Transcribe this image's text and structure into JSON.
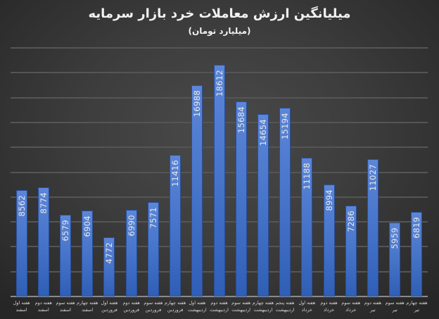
{
  "chart_data": {
    "type": "bar",
    "title": "میلیانگین ارزش معاملات خرد بازار سرمایه",
    "subtitle": "(میلیارد تومان)",
    "xlabel": "",
    "ylabel": "",
    "ylim": [
      0,
      20000
    ],
    "grid": true,
    "gridline_step": 2000,
    "legend": "none",
    "y_axis_visible": false,
    "data_labels": "inside-end-rotated",
    "colors": {
      "background_center": "#4a4a4a",
      "background_edge": "#262626",
      "bar_top": "#5c86d8",
      "bar_bottom": "#2f5eb6",
      "gridline": "#555555",
      "text": "#f2f2f2"
    },
    "categories": [
      {
        "week": "هفته اول",
        "month": "اسفند"
      },
      {
        "week": "هفته دوم",
        "month": "اسفند"
      },
      {
        "week": "هفته سوم",
        "month": "اسفند"
      },
      {
        "week": "هفته چهارم",
        "month": "اسفند"
      },
      {
        "week": "هفته اول",
        "month": "فروردین"
      },
      {
        "week": "هفته دوم",
        "month": "فروردین"
      },
      {
        "week": "هفته سوم",
        "month": "فروردین"
      },
      {
        "week": "هفته چهارم",
        "month": "فروردین"
      },
      {
        "week": "هفته اول",
        "month": "اردیبهشت"
      },
      {
        "week": "هفته دوم",
        "month": "اردیبهشت"
      },
      {
        "week": "هفته سوم",
        "month": "اردیبهشت"
      },
      {
        "week": "هفته چهارم",
        "month": "اردیبهشت"
      },
      {
        "week": "هفته پنجم",
        "month": "اردیبهشت"
      },
      {
        "week": "هفته اول",
        "month": "خرداد"
      },
      {
        "week": "هفته دوم",
        "month": "خرداد"
      },
      {
        "week": "هفته سوم",
        "month": "خرداد"
      },
      {
        "week": "هفته دوم",
        "month": "تیر"
      },
      {
        "week": "هفته سوم",
        "month": "تیر"
      },
      {
        "week": "هفته چهارم",
        "month": "تیر"
      }
    ],
    "values": [
      8562,
      8774,
      6579,
      6904,
      4772,
      6990,
      7571,
      11416,
      16988,
      18612,
      15684,
      14654,
      15194,
      11188,
      8994,
      7286,
      11027,
      5959,
      6819
    ]
  }
}
